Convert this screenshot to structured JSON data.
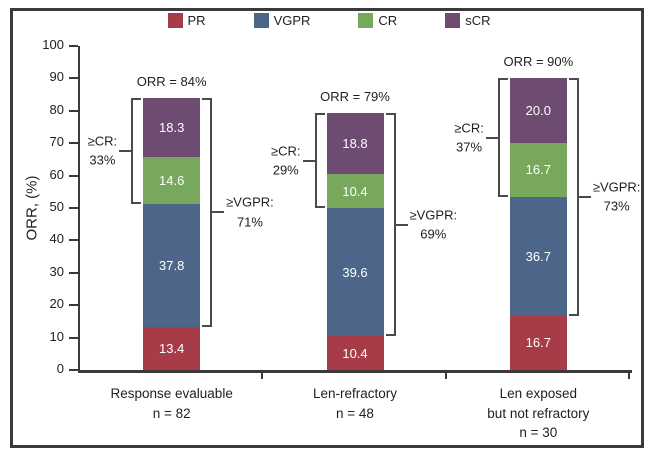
{
  "frame": {
    "border_color": "#3a3a3a",
    "background": "#ffffff"
  },
  "chart_data": {
    "type": "bar",
    "stacked": true,
    "title": "",
    "ylabel": "ORR, (%)",
    "xlabel": "",
    "ylim": [
      0,
      100
    ],
    "yticks": [
      0,
      10,
      20,
      30,
      40,
      50,
      60,
      70,
      80,
      90,
      100
    ],
    "grid": false,
    "legend_position": "top",
    "axis_color": "#3a3a3a",
    "bracket_color": "#4a4a4a",
    "categories": [
      {
        "label_lines": [
          "Response evaluable",
          "n = 82"
        ]
      },
      {
        "label_lines": [
          "Len-refractory",
          "n = 48"
        ]
      },
      {
        "label_lines": [
          "Len exposed",
          "but not refractory",
          "n = 30"
        ]
      }
    ],
    "series": [
      {
        "name": "PR",
        "color": "#a73b47",
        "values": [
          13.4,
          10.4,
          16.7
        ],
        "labels": [
          "13.4",
          "10.4",
          "16.7"
        ]
      },
      {
        "name": "VGPR",
        "color": "#4c6588",
        "values": [
          37.8,
          39.6,
          36.7
        ],
        "labels": [
          "37.8",
          "39.6",
          "36.7"
        ]
      },
      {
        "name": "CR",
        "color": "#77a85c",
        "values": [
          14.6,
          10.4,
          16.7
        ],
        "labels": [
          "14.6",
          "10.4",
          "16.7"
        ]
      },
      {
        "name": "sCR",
        "color": "#6e4c71",
        "values": [
          18.3,
          18.8,
          20.0
        ],
        "labels": [
          "18.3",
          "18.8",
          "20.0"
        ]
      }
    ],
    "annotations": {
      "orr_labels": [
        "ORR = 84%",
        "ORR = 79%",
        "ORR = 90%"
      ],
      "cr_brackets": [
        {
          "lines": [
            "≥CR:",
            "33%"
          ]
        },
        {
          "lines": [
            "≥CR:",
            "29%"
          ]
        },
        {
          "lines": [
            "≥CR:",
            "37%"
          ]
        }
      ],
      "vgpr_brackets": [
        {
          "lines": [
            "≥VGPR:",
            "71%"
          ]
        },
        {
          "lines": [
            "≥VGPR:",
            "69%"
          ]
        },
        {
          "lines": [
            "≥VGPR:",
            "73%"
          ]
        }
      ]
    }
  }
}
